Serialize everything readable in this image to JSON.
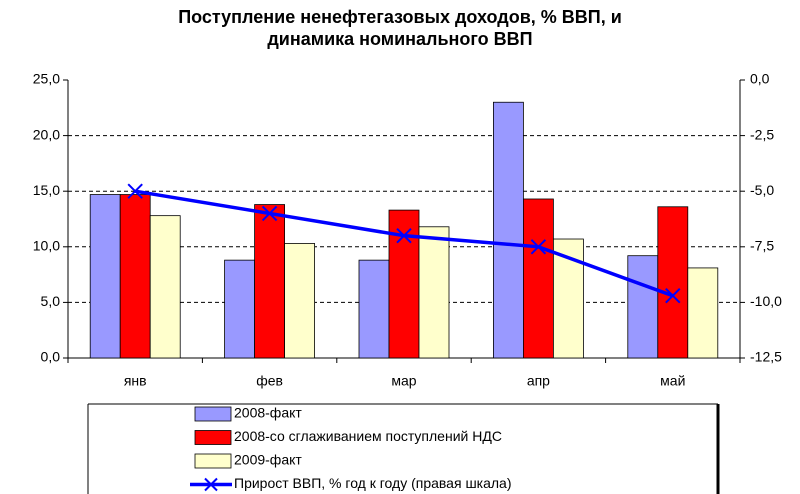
{
  "chart_data": {
    "type": "bar",
    "title": "Поступление ненефтегазовых доходов, % ВВП, и динамика номинального ВВП",
    "categories": [
      "янв",
      "фев",
      "мар",
      "апр",
      "май"
    ],
    "series": [
      {
        "name": "2008-факт",
        "color": "#9999ff",
        "values": [
          14.7,
          8.8,
          8.8,
          23.0,
          9.2
        ]
      },
      {
        "name": "2008-со сглаживанием поступлений НДС",
        "color": "#ff0000",
        "values": [
          14.7,
          13.8,
          13.3,
          14.3,
          13.6
        ]
      },
      {
        "name": "2009-факт",
        "color": "#ffffcc",
        "values": [
          12.8,
          10.3,
          11.8,
          10.7,
          8.1
        ]
      },
      {
        "name": "Прирост ВВП, % год к году (правая шкала)",
        "color": "#0000ff",
        "type": "line",
        "axis": "y2",
        "values": [
          -5.0,
          -6.0,
          -7.0,
          -7.5,
          -9.7
        ]
      }
    ],
    "ylim": [
      0,
      25
    ],
    "yticks": [
      {
        "value": 0,
        "label": "0,0"
      },
      {
        "value": 5,
        "label": "5,0"
      },
      {
        "value": 10,
        "label": "10,0"
      },
      {
        "value": 15,
        "label": "15,0"
      },
      {
        "value": 20,
        "label": "20,0"
      },
      {
        "value": 25,
        "label": "25,0"
      }
    ],
    "y2lim": [
      -12.5,
      0
    ],
    "y2ticks": [
      {
        "value": 0,
        "label": "0,0"
      },
      {
        "value": -2.5,
        "label": "-2,5"
      },
      {
        "value": -5,
        "label": "-5,0"
      },
      {
        "value": -7.5,
        "label": "-7,5"
      },
      {
        "value": -10,
        "label": "-10,0"
      },
      {
        "value": -12.5,
        "label": "-12,5"
      }
    ],
    "grid": true
  }
}
